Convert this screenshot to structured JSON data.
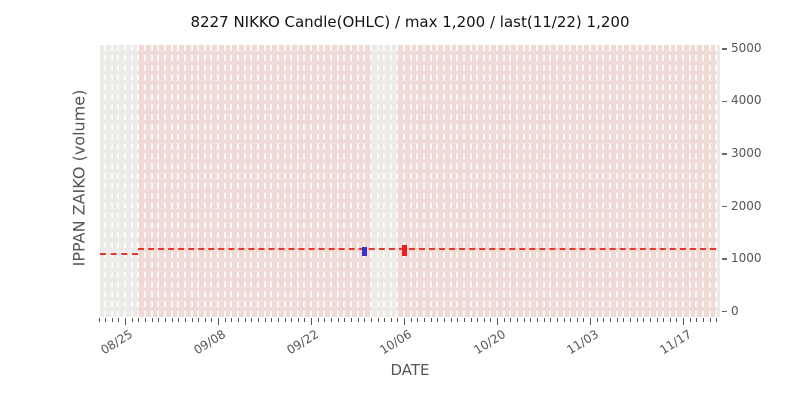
{
  "chart_data": {
    "type": "candlestick",
    "title": "8227 NIKKO Candle(OHLC) / max 1,200 / last(11/22) 1,200",
    "xlabel": "DATE",
    "ylabel": "IPPAN ZAIKO (volume)",
    "x_axis": {
      "start": "08/21",
      "end": "11/22",
      "major_ticks": [
        "08/25",
        "09/08",
        "09/22",
        "10/06",
        "10/20",
        "11/03",
        "11/17"
      ],
      "minor_tick_interval_days": 1
    },
    "y_axis": {
      "min": 0,
      "max": 5000,
      "ticks": [
        0,
        1000,
        2000,
        3000,
        4000,
        5000
      ],
      "side": "right"
    },
    "max_value": "1,200",
    "last": {
      "date": "11/22",
      "value": "1,200"
    },
    "value_line": {
      "style": "dashed",
      "color": "#e8362b",
      "segments": [
        {
          "from": "08/21",
          "to": "08/27",
          "value": 1100
        },
        {
          "from": "08/27",
          "to": "11/22",
          "value": 1200
        }
      ]
    },
    "candles": [
      {
        "date": "09/30",
        "open": 1200,
        "high": 1230,
        "low": 1060,
        "close": 1100,
        "direction": "down",
        "color": "#3832cb"
      },
      {
        "date": "10/06",
        "open": 1100,
        "high": 1270,
        "low": 1060,
        "close": 1200,
        "direction": "up",
        "color": "#ea1f1a"
      }
    ],
    "shaded_spans": [
      {
        "from": "08/27",
        "to": "09/30"
      },
      {
        "from": "10/05",
        "to": "11/21"
      }
    ],
    "grid": {
      "vertical_daily_dashed": true,
      "horizontal": false
    },
    "colors": {
      "plot_bg": "#ECEBE8",
      "span_pink": "#EFDAD5",
      "grid_dash": "#FFFFFF",
      "tick_text": "#555555",
      "title_text": "#141414"
    }
  }
}
